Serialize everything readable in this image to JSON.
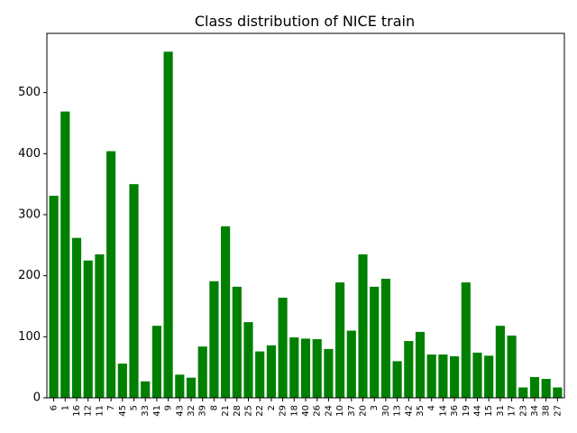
{
  "chart_data": {
    "type": "bar",
    "title": "Class distribution of NICE train",
    "xlabel": "",
    "ylabel": "",
    "categories": [
      "6",
      "1",
      "16",
      "12",
      "11",
      "7",
      "45",
      "5",
      "33",
      "41",
      "9",
      "43",
      "32",
      "39",
      "8",
      "21",
      "28",
      "25",
      "22",
      "2",
      "29",
      "18",
      "40",
      "26",
      "24",
      "10",
      "37",
      "20",
      "3",
      "30",
      "13",
      "42",
      "35",
      "4",
      "14",
      "36",
      "19",
      "44",
      "15",
      "31",
      "17",
      "23",
      "34",
      "38",
      "27"
    ],
    "values": [
      331,
      469,
      262,
      225,
      235,
      404,
      56,
      350,
      27,
      118,
      567,
      38,
      33,
      84,
      191,
      281,
      182,
      124,
      76,
      86,
      164,
      99,
      97,
      96,
      80,
      189,
      110,
      235,
      182,
      195,
      60,
      93,
      108,
      71,
      71,
      68,
      189,
      74,
      69,
      118,
      102,
      17,
      34,
      31,
      17
    ],
    "ylim": [
      0,
      597
    ],
    "yticks": [
      0,
      100,
      200,
      300,
      400,
      500
    ],
    "grid": false,
    "bar_color": "#008000"
  }
}
